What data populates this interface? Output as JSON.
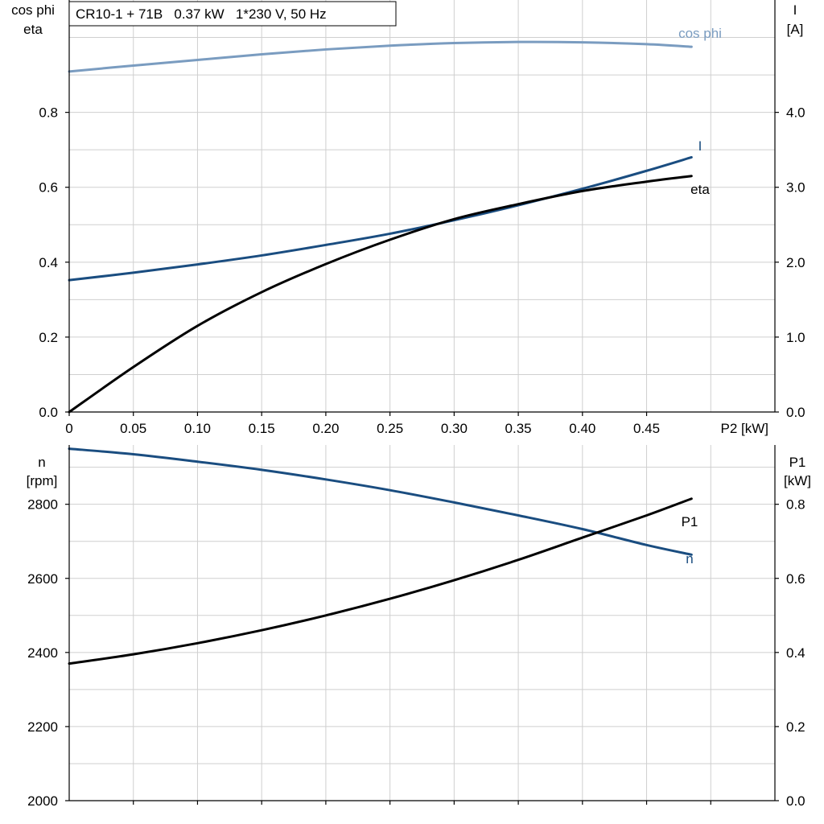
{
  "title": "CR10-1 + 71B   0.37 kW   1*230 V, 50 Hz",
  "chart_data": [
    {
      "type": "line",
      "id": "top",
      "x_label": "P2 [kW]",
      "x_ticks": [
        "0",
        "0.05",
        "0.10",
        "0.15",
        "0.20",
        "0.25",
        "0.30",
        "0.35",
        "0.40",
        "0.45"
      ],
      "xlim": [
        0,
        0.55
      ],
      "left_axis": {
        "label_line1": "cos phi",
        "label_line2": "eta",
        "ylim": [
          0,
          1.1
        ],
        "ticks": [
          "0.0",
          "0.2",
          "0.4",
          "0.6",
          "0.8"
        ]
      },
      "right_axis": {
        "label_line1": "I",
        "label_line2": "[A]",
        "ylim": [
          0,
          5.5
        ],
        "ticks": [
          "0.0",
          "1.0",
          "2.0",
          "3.0",
          "4.0"
        ]
      },
      "series": [
        {
          "name": "cos phi",
          "axis": "left",
          "color": "#7a9cc0",
          "x": [
            0,
            0.05,
            0.1,
            0.15,
            0.2,
            0.25,
            0.3,
            0.35,
            0.4,
            0.45,
            0.485
          ],
          "y": [
            0.909,
            0.925,
            0.94,
            0.955,
            0.968,
            0.978,
            0.985,
            0.988,
            0.987,
            0.982,
            0.975
          ]
        },
        {
          "name": "I",
          "axis": "right",
          "color": "#1a4d80",
          "x": [
            0,
            0.05,
            0.1,
            0.15,
            0.2,
            0.25,
            0.3,
            0.35,
            0.4,
            0.45,
            0.485
          ],
          "y": [
            1.76,
            1.86,
            1.97,
            2.09,
            2.23,
            2.38,
            2.56,
            2.76,
            2.98,
            3.22,
            3.4
          ]
        },
        {
          "name": "eta",
          "axis": "left",
          "color": "#000000",
          "x": [
            0,
            0.05,
            0.1,
            0.15,
            0.2,
            0.25,
            0.3,
            0.35,
            0.4,
            0.45,
            0.485
          ],
          "y": [
            0.0,
            0.12,
            0.23,
            0.32,
            0.395,
            0.46,
            0.515,
            0.555,
            0.59,
            0.615,
            0.63
          ]
        }
      ]
    },
    {
      "type": "line",
      "id": "bottom",
      "xlim": [
        0,
        0.55
      ],
      "left_axis": {
        "label_line1": "n",
        "label_line2": "[rpm]",
        "ylim": [
          2000,
          2960
        ],
        "ticks": [
          "2000",
          "2200",
          "2400",
          "2600",
          "2800"
        ]
      },
      "right_axis": {
        "label_line1": "P1",
        "label_line2": "[kW]",
        "ylim": [
          0,
          0.96
        ],
        "ticks": [
          "0.0",
          "0.2",
          "0.4",
          "0.6",
          "0.8"
        ]
      },
      "series": [
        {
          "name": "n",
          "axis": "left",
          "color": "#1a4d80",
          "x": [
            0,
            0.05,
            0.1,
            0.15,
            0.2,
            0.25,
            0.3,
            0.35,
            0.4,
            0.45,
            0.485
          ],
          "y": [
            2950,
            2935,
            2915,
            2893,
            2867,
            2838,
            2805,
            2770,
            2733,
            2690,
            2664
          ]
        },
        {
          "name": "P1",
          "axis": "right",
          "color": "#000000",
          "x": [
            0,
            0.05,
            0.1,
            0.15,
            0.2,
            0.25,
            0.3,
            0.35,
            0.4,
            0.45,
            0.485
          ],
          "y": [
            0.37,
            0.395,
            0.425,
            0.46,
            0.5,
            0.545,
            0.595,
            0.65,
            0.71,
            0.77,
            0.815
          ]
        }
      ]
    }
  ]
}
